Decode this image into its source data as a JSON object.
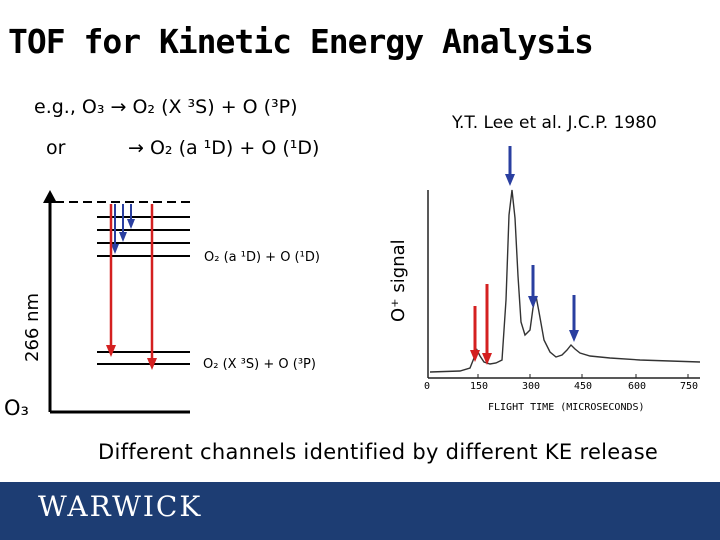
{
  "title": "TOF for Kinetic Energy Analysis",
  "equations": {
    "line1": "e.g., O₃ → O₂ (X ³S) + O (³P)",
    "or": "or",
    "line2": "→ O₂ (a ¹D) + O (¹D)"
  },
  "citation": "Y.T. Lee et al. J.C.P. 1980",
  "energy_diagram": {
    "photon_label": "266 nm",
    "ground_label": "O₃",
    "upper_state_label": "O₂ (a ¹D) + O (¹D)",
    "lower_state_label": "O₂ (X ³S) + O (³P)",
    "colors": {
      "red": "#d42020",
      "blue": "#2a3fa0"
    }
  },
  "spectrum": {
    "ylabel": "O⁺ signal",
    "xlabel": "FLIGHT TIME (MICROSECONDS)",
    "x_ticks": [
      "0",
      "150",
      "300",
      "450",
      "600",
      "750"
    ]
  },
  "caption": "Different channels identified by different KE release",
  "footer": {
    "logo": "WARWICK",
    "color": "#1d3d73"
  }
}
